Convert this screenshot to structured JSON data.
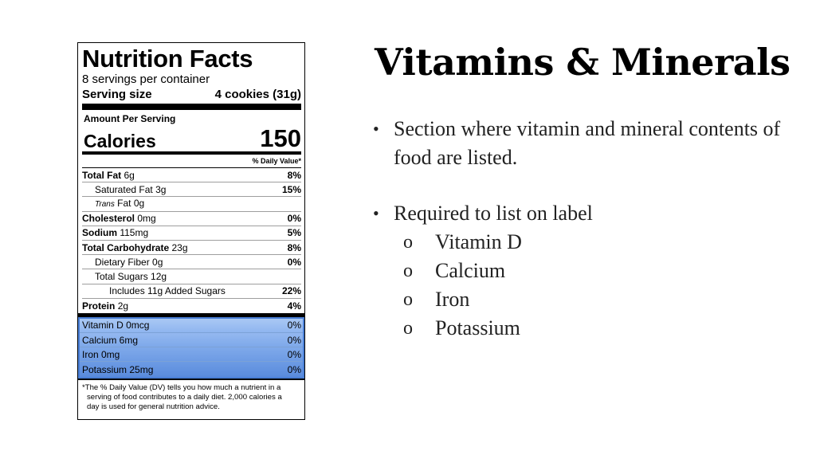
{
  "label": {
    "title": "Nutrition Facts",
    "servings": "8 servings per container",
    "serving_size_label": "Serving size",
    "serving_size_value": "4 cookies (31g)",
    "amount_per_serving": "Amount Per Serving",
    "calories_label": "Calories",
    "calories_value": "150",
    "dv_header": "% Daily Value*",
    "rows": [
      {
        "name": "Total Fat",
        "amount": "6g",
        "pct": "8%"
      },
      {
        "name": "Saturated Fat",
        "amount": "3g",
        "pct": "15%"
      },
      {
        "name": "Trans",
        "amount": "Fat 0g",
        "pct": ""
      },
      {
        "name": "Cholesterol",
        "amount": "0mg",
        "pct": "0%"
      },
      {
        "name": "Sodium",
        "amount": "115mg",
        "pct": "5%"
      },
      {
        "name": "Total Carbohydrate",
        "amount": "23g",
        "pct": "8%"
      },
      {
        "name": "Dietary Fiber 0g",
        "amount": "",
        "pct": "0%"
      },
      {
        "name": "Total Sugars 12g",
        "amount": "",
        "pct": ""
      },
      {
        "name": "Includes 11g Added Sugars",
        "amount": "",
        "pct": "22%"
      },
      {
        "name": "Protein",
        "amount": "2g",
        "pct": "4%"
      }
    ],
    "vitamins": [
      {
        "name": "Vitamin D 0mcg",
        "pct": "0%"
      },
      {
        "name": "Calcium 6mg",
        "pct": "0%"
      },
      {
        "name": "Iron 0mg",
        "pct": "0%"
      },
      {
        "name": "Potassium 25mg",
        "pct": "0%"
      }
    ],
    "footnote": [
      "*The % Daily Value (DV) tells you how much a nutrient in a",
      "serving of food contributes to a daily diet. 2,000 calories a",
      "day is used for general nutrition advice."
    ],
    "highlight_color": "#4a7fd6"
  },
  "slide": {
    "title": "Vitamins & Minerals",
    "bullet_symbol": "•",
    "sub_symbol": "o",
    "bullets": [
      "Section where vitamin and mineral contents of food are listed.",
      "Required to list on label"
    ],
    "sub_items": [
      "Vitamin D",
      "Calcium",
      "Iron",
      "Potassium"
    ]
  }
}
